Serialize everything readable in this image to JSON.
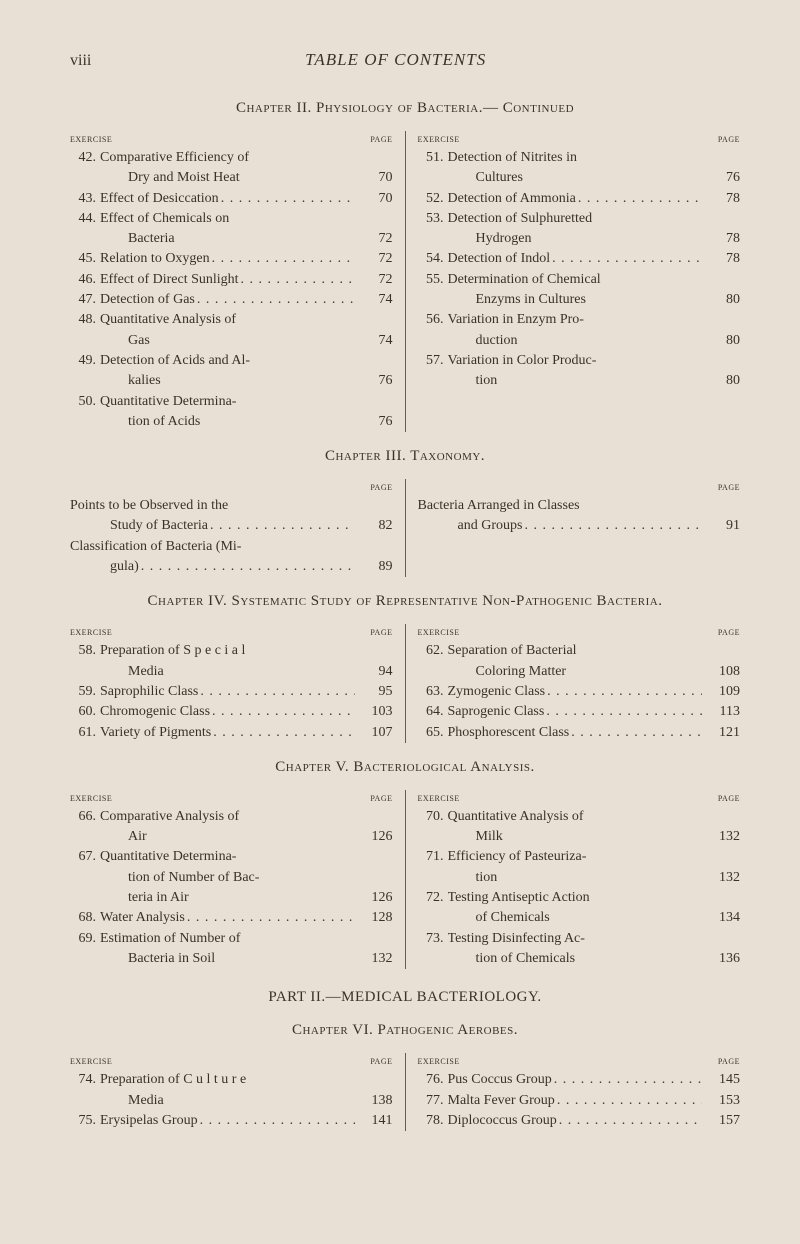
{
  "runningHead": {
    "pageNum": "viii",
    "title": "TABLE OF CONTENTS"
  },
  "chapter2": {
    "title": "Chapter II.  Physiology of Bacteria.— Continued",
    "colHead": {
      "left": "exercise",
      "right": "page"
    },
    "left": [
      {
        "n": "42.",
        "t": "Comparative Efficiency of",
        "p": ""
      },
      {
        "n": "",
        "t": "Dry and Moist Heat",
        "p": "70",
        "hang": true
      },
      {
        "n": "43.",
        "t": "Effect of Desiccation",
        "p": "70"
      },
      {
        "n": "44.",
        "t": "Effect of Chemicals on",
        "p": ""
      },
      {
        "n": "",
        "t": "Bacteria",
        "p": "72",
        "hang": true
      },
      {
        "n": "45.",
        "t": "Relation to Oxygen",
        "p": "72"
      },
      {
        "n": "46.",
        "t": "Effect of Direct Sunlight",
        "p": "72"
      },
      {
        "n": "47.",
        "t": "Detection of Gas",
        "p": "74"
      },
      {
        "n": "48.",
        "t": "Quantitative Analysis of",
        "p": ""
      },
      {
        "n": "",
        "t": "Gas",
        "p": "74",
        "hang": true
      },
      {
        "n": "49.",
        "t": "Detection of Acids and Al-",
        "p": ""
      },
      {
        "n": "",
        "t": "kalies",
        "p": "76",
        "hang": true
      },
      {
        "n": "50.",
        "t": "Quantitative Determina-",
        "p": ""
      },
      {
        "n": "",
        "t": "tion of Acids",
        "p": "76",
        "hang": true
      }
    ],
    "right": [
      {
        "n": "51.",
        "t": "Detection of Nitrites in",
        "p": ""
      },
      {
        "n": "",
        "t": "Cultures",
        "p": "76",
        "hang": true
      },
      {
        "n": "52.",
        "t": "Detection of Ammonia",
        "p": "78"
      },
      {
        "n": "53.",
        "t": "Detection of Sulphuretted",
        "p": ""
      },
      {
        "n": "",
        "t": "Hydrogen",
        "p": "78",
        "hang": true
      },
      {
        "n": "54.",
        "t": "Detection of Indol",
        "p": "78"
      },
      {
        "n": "55.",
        "t": "Determination of Chemical",
        "p": ""
      },
      {
        "n": "",
        "t": "Enzyms in Cultures",
        "p": "80",
        "hang": true
      },
      {
        "n": "56.",
        "t": "Variation in Enzym Pro-",
        "p": ""
      },
      {
        "n": "",
        "t": "duction",
        "p": "80",
        "hang": true
      },
      {
        "n": "57.",
        "t": "Variation in Color Produc-",
        "p": ""
      },
      {
        "n": "",
        "t": "tion",
        "p": "80",
        "hang": true
      }
    ]
  },
  "chapter3": {
    "title": "Chapter III.  Taxonomy.",
    "left": {
      "head": "page",
      "lines": [
        {
          "t": "Points to be Observed in the",
          "p": ""
        },
        {
          "t": "Study of Bacteria",
          "p": "82",
          "indent": true
        },
        {
          "t": "Classification of Bacteria (Mi-",
          "p": ""
        },
        {
          "t": "gula)",
          "p": "89",
          "indent": true
        }
      ]
    },
    "right": {
      "head": "page",
      "lines": [
        {
          "t": "Bacteria Arranged in Classes",
          "p": ""
        },
        {
          "t": "and Groups",
          "p": "91",
          "indent": true
        }
      ]
    }
  },
  "chapter4": {
    "title": "Chapter IV.  Systematic Study of Representative Non-Pathogenic Bacteria.",
    "colHead": {
      "left": "exercise",
      "right": "page"
    },
    "left": [
      {
        "n": "58.",
        "t": "Preparation of S p e c i a l",
        "p": ""
      },
      {
        "n": "",
        "t": "Media",
        "p": "94",
        "hang": true
      },
      {
        "n": "59.",
        "t": "Saprophilic Class",
        "p": "95"
      },
      {
        "n": "60.",
        "t": "Chromogenic Class",
        "p": "103"
      },
      {
        "n": "61.",
        "t": "Variety of Pigments",
        "p": "107"
      }
    ],
    "right": [
      {
        "n": "62.",
        "t": "Separation of Bacterial",
        "p": ""
      },
      {
        "n": "",
        "t": "Coloring Matter",
        "p": "108",
        "hang": true
      },
      {
        "n": "63.",
        "t": "Zymogenic Class",
        "p": "109"
      },
      {
        "n": "64.",
        "t": "Saprogenic Class",
        "p": "113"
      },
      {
        "n": "65.",
        "t": "Phosphorescent Class",
        "p": "121"
      }
    ]
  },
  "chapter5": {
    "title": "Chapter V.  Bacteriological Analysis.",
    "colHead": {
      "left": "exercise",
      "right": "page"
    },
    "left": [
      {
        "n": "66.",
        "t": "Comparative Analysis of",
        "p": ""
      },
      {
        "n": "",
        "t": "Air",
        "p": "126",
        "hang": true
      },
      {
        "n": "67.",
        "t": "Quantitative Determina-",
        "p": ""
      },
      {
        "n": "",
        "t": "tion of Number of Bac-",
        "p": "",
        "hang": true
      },
      {
        "n": "",
        "t": "teria in Air",
        "p": "126",
        "hang": true
      },
      {
        "n": "68.",
        "t": "Water Analysis",
        "p": "128"
      },
      {
        "n": "69.",
        "t": "Estimation of Number of",
        "p": ""
      },
      {
        "n": "",
        "t": "Bacteria in Soil",
        "p": "132",
        "hang": true
      }
    ],
    "right": [
      {
        "n": "70.",
        "t": "Quantitative Analysis of",
        "p": ""
      },
      {
        "n": "",
        "t": "Milk",
        "p": "132",
        "hang": true
      },
      {
        "n": "71.",
        "t": "Efficiency of Pasteuriza-",
        "p": ""
      },
      {
        "n": "",
        "t": "tion",
        "p": "132",
        "hang": true
      },
      {
        "n": "72.",
        "t": "Testing Antiseptic Action",
        "p": ""
      },
      {
        "n": "",
        "t": "of Chemicals",
        "p": "134",
        "hang": true
      },
      {
        "n": "73.",
        "t": "Testing Disinfecting Ac-",
        "p": ""
      },
      {
        "n": "",
        "t": "tion of Chemicals",
        "p": "136",
        "hang": true
      }
    ]
  },
  "part2": "PART II.—MEDICAL BACTERIOLOGY.",
  "chapter6": {
    "title": "Chapter VI.  Pathogenic Aerobes.",
    "colHead": {
      "left": "exercise",
      "right": "page"
    },
    "left": [
      {
        "n": "74.",
        "t": "Preparation of C u l t u r e",
        "p": ""
      },
      {
        "n": "",
        "t": "Media",
        "p": "138",
        "hang": true
      },
      {
        "n": "75.",
        "t": "Erysipelas Group",
        "p": "141"
      }
    ],
    "right": [
      {
        "n": "76.",
        "t": "Pus Coccus Group",
        "p": "145"
      },
      {
        "n": "77.",
        "t": "Malta Fever Group",
        "p": "153"
      },
      {
        "n": "78.",
        "t": "Diplococcus Group",
        "p": "157"
      }
    ]
  }
}
